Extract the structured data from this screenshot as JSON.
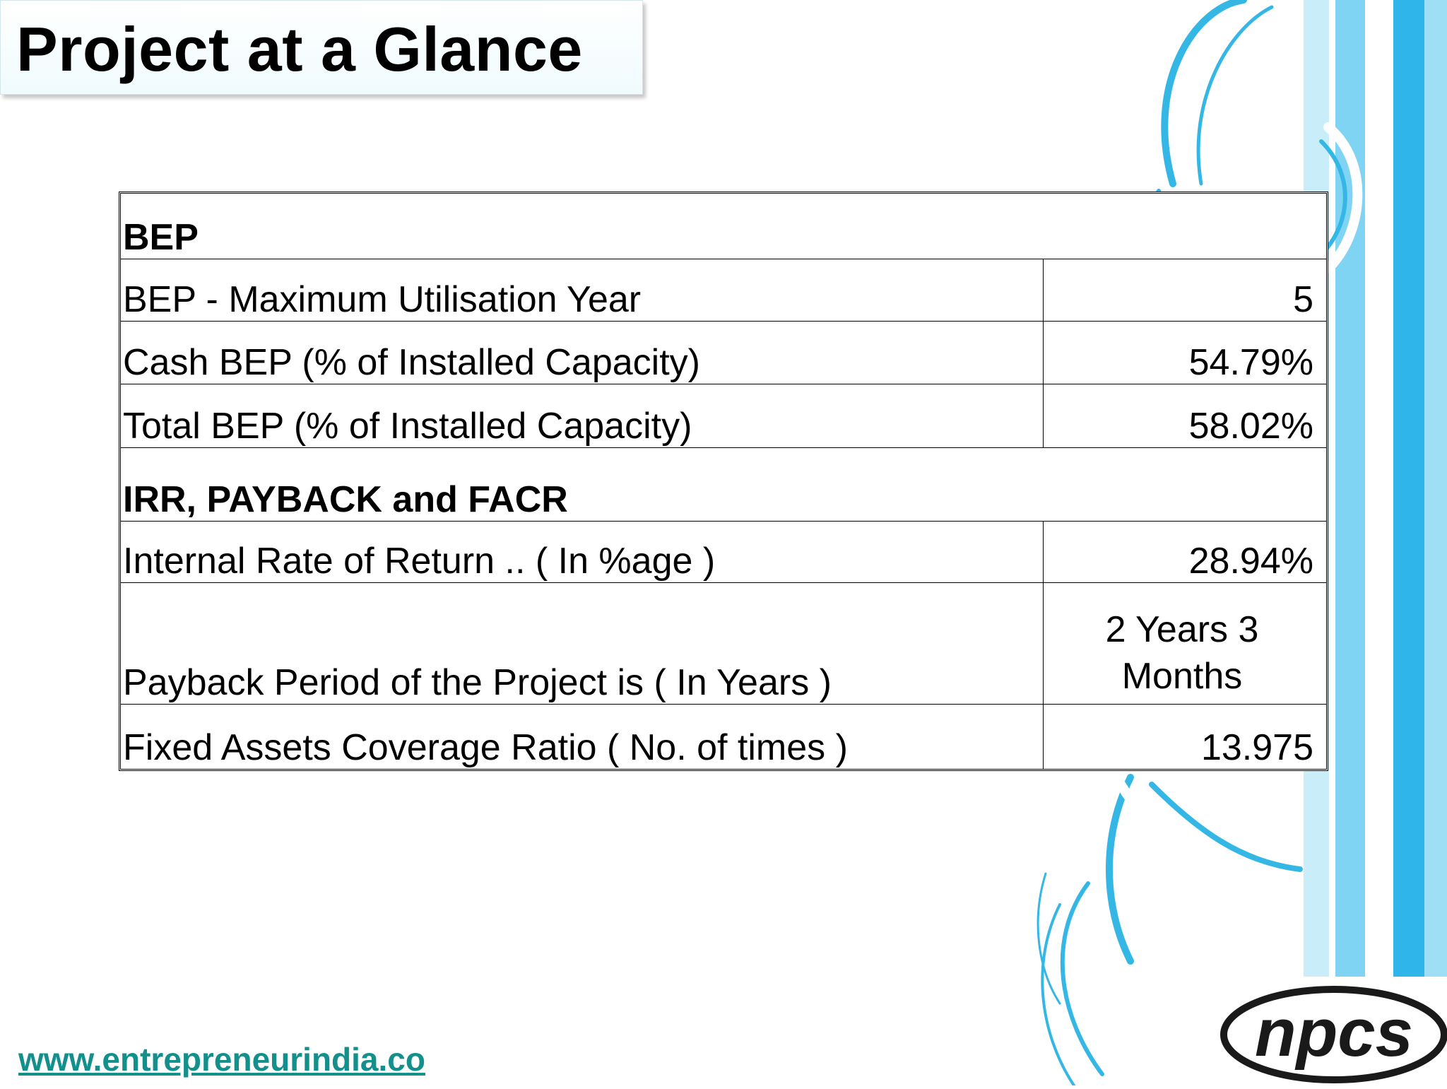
{
  "title": "Project at a Glance",
  "table": {
    "sections": [
      {
        "heading": "BEP",
        "rows": [
          {
            "label": "BEP - Maximum Utilisation Year",
            "value": "5"
          },
          {
            "label": "Cash BEP (% of Installed Capacity)",
            "value": "54.79%"
          },
          {
            "label": "Total BEP (% of Installed Capacity)",
            "value": "58.02%"
          }
        ]
      },
      {
        "heading": "IRR, PAYBACK  and FACR",
        "rows": [
          {
            "label": "Internal Rate of Return .. ( In %age )",
            "value": "28.94%"
          },
          {
            "label": "Payback Period of the Project is   ( In Years )",
            "value_line1": "2 Years 3",
            "value_line2": "Months"
          },
          {
            "label": "Fixed Assets Coverage Ratio ( No. of times )",
            "value": "13.975"
          }
        ]
      }
    ]
  },
  "footer": {
    "website": "www.entrepreneurindia.co"
  },
  "logo": {
    "text": "npcs"
  },
  "colors": {
    "accent_blue": "#29b6e8",
    "link_teal": "#138f8c",
    "logo_dark": "#1a1a1a"
  }
}
